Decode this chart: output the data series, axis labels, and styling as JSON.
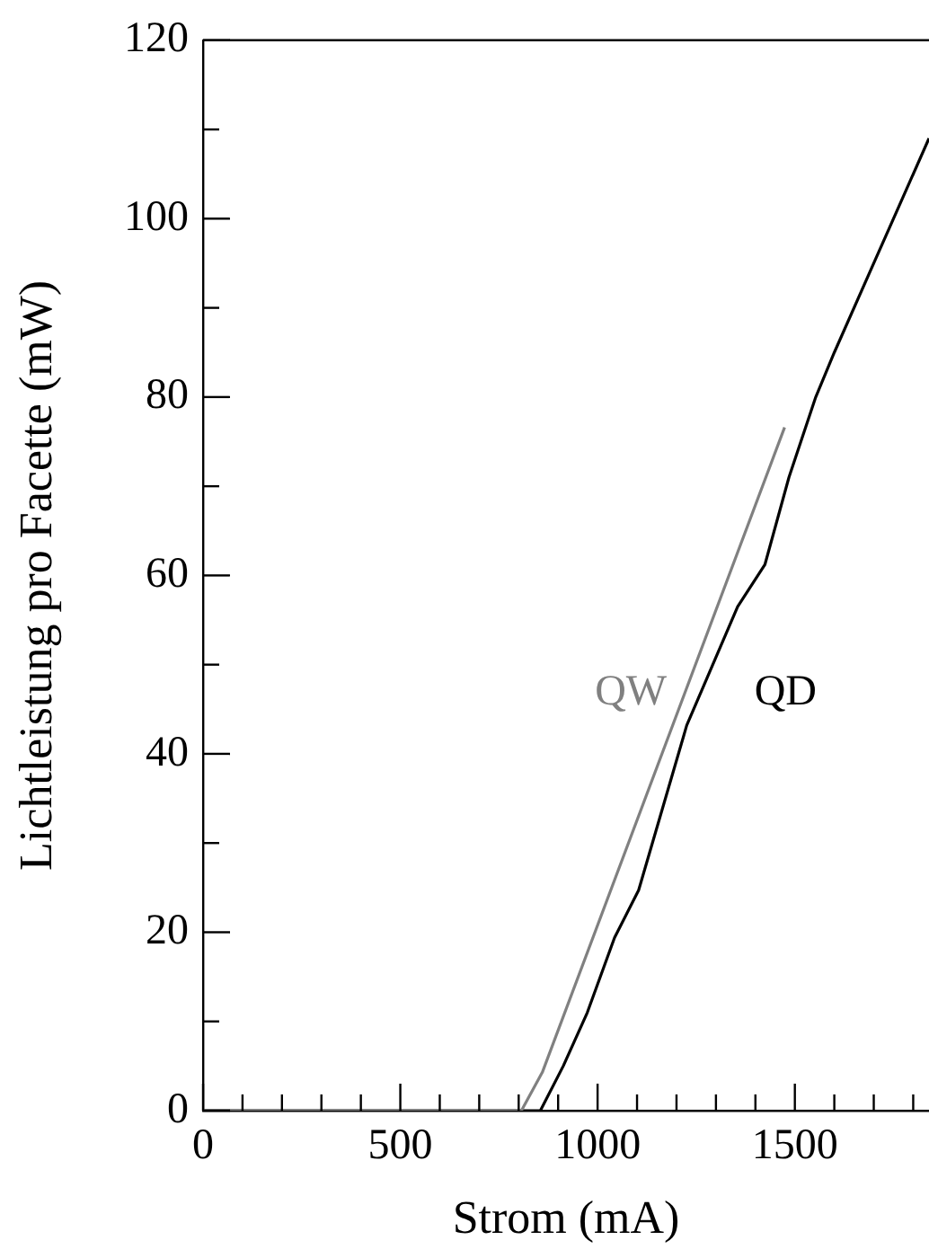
{
  "chart_data": {
    "type": "line",
    "xlabel": "Strom (mA)",
    "ylabel": "Lichtleistung pro Facette (mW)",
    "xlim": [
      0,
      1840
    ],
    "ylim": [
      0,
      120
    ],
    "xticks": [
      0,
      {
        "value": 100,
        "label": null
      },
      {
        "value": 200,
        "label": null
      },
      {
        "value": 300,
        "label": null
      },
      {
        "value": 400,
        "label": null
      },
      500,
      {
        "value": 600,
        "label": null
      },
      {
        "value": 700,
        "label": null
      },
      {
        "value": 800,
        "label": null
      },
      {
        "value": 900,
        "label": null
      },
      1000,
      {
        "value": 1100,
        "label": null
      },
      {
        "value": 1200,
        "label": null
      },
      {
        "value": 1300,
        "label": null
      },
      {
        "value": 1400,
        "label": null
      },
      1500,
      {
        "value": 1600,
        "label": null
      },
      {
        "value": 1700,
        "label": null
      },
      {
        "value": 1800,
        "label": null
      }
    ],
    "yticks": [
      0,
      {
        "value": 10,
        "label": null
      },
      20,
      {
        "value": 30,
        "label": null
      },
      40,
      {
        "value": 50,
        "label": null
      },
      60,
      {
        "value": 70,
        "label": null
      },
      80,
      {
        "value": 90,
        "label": null
      },
      100,
      {
        "value": 110,
        "label": null
      },
      120
    ],
    "grid": false,
    "legend": false,
    "marker": "none",
    "line_style": "solid",
    "series": [
      {
        "name": "QW",
        "color": "#808080",
        "x": [
          0,
          807,
          860,
          1474
        ],
        "values": [
          0,
          0,
          4.3,
          76.6
        ]
      },
      {
        "name": "QD",
        "color": "#000000",
        "x": [
          0,
          855,
          913,
          974,
          1043,
          1104,
          1226,
          1355,
          1424,
          1485,
          1553,
          1600,
          1700,
          1790,
          1840
        ],
        "values": [
          0,
          0,
          5,
          11,
          19.4,
          24.7,
          43.2,
          56.5,
          61.2,
          71,
          80,
          85,
          95,
          104,
          109
        ]
      }
    ]
  }
}
